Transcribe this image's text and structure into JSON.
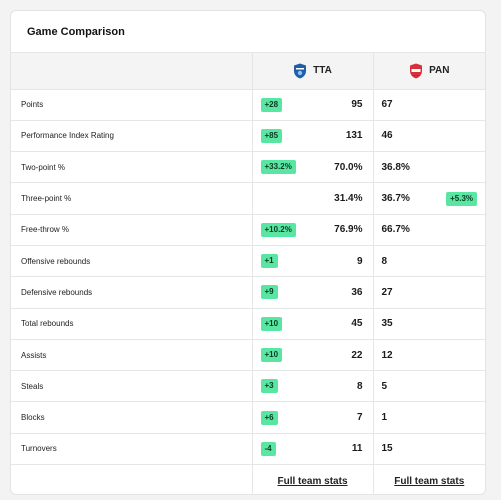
{
  "card": {
    "title": "Game Comparison"
  },
  "teams": {
    "home": {
      "abbr": "TTA",
      "logo_icon": "tta-shield-logo",
      "color": "#1f5fa8"
    },
    "away": {
      "abbr": "PAN",
      "logo_icon": "pan-shield-logo",
      "color": "#d6313a"
    }
  },
  "accent": {
    "badge_bg": "#58e6a2",
    "badge_text": "#0b3a22"
  },
  "rows": [
    {
      "label": "Points",
      "home": "95",
      "away": "67",
      "home_badge": "+28",
      "away_badge": ""
    },
    {
      "label": "Performance Index Rating",
      "home": "131",
      "away": "46",
      "home_badge": "+85",
      "away_badge": ""
    },
    {
      "label": "Two-point %",
      "home": "70.0%",
      "away": "36.8%",
      "home_badge": "+33.2%",
      "away_badge": ""
    },
    {
      "label": "Three-point %",
      "home": "31.4%",
      "away": "36.7%",
      "home_badge": "",
      "away_badge": "+5.3%"
    },
    {
      "label": "Free-throw %",
      "home": "76.9%",
      "away": "66.7%",
      "home_badge": "+10.2%",
      "away_badge": ""
    },
    {
      "label": "Offensive rebounds",
      "home": "9",
      "away": "8",
      "home_badge": "+1",
      "away_badge": ""
    },
    {
      "label": "Defensive rebounds",
      "home": "36",
      "away": "27",
      "home_badge": "+9",
      "away_badge": ""
    },
    {
      "label": "Total rebounds",
      "home": "45",
      "away": "35",
      "home_badge": "+10",
      "away_badge": ""
    },
    {
      "label": "Assists",
      "home": "22",
      "away": "12",
      "home_badge": "+10",
      "away_badge": ""
    },
    {
      "label": "Steals",
      "home": "8",
      "away": "5",
      "home_badge": "+3",
      "away_badge": ""
    },
    {
      "label": "Blocks",
      "home": "7",
      "away": "1",
      "home_badge": "+6",
      "away_badge": ""
    },
    {
      "label": "Turnovers",
      "home": "11",
      "away": "15",
      "home_badge": "-4",
      "away_badge": ""
    }
  ],
  "footer": {
    "home_link": "Full team stats",
    "away_link": "Full team stats"
  }
}
